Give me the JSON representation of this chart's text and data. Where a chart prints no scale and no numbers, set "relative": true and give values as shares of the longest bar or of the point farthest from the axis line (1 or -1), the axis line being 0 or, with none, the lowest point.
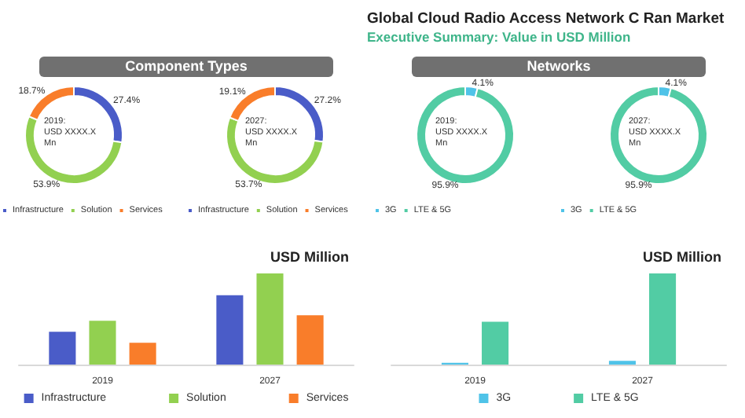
{
  "chart_data": [
    {
      "type": "other",
      "title": "Global Cloud Radio Access Network C Ran Market",
      "subtitle": "Executive Summary: Value in USD Million"
    },
    {
      "type": "donut",
      "title": "Component Types",
      "categories": [
        "Infrastructure",
        "Solution",
        "Services"
      ],
      "values": [
        27.4,
        53.9,
        18.7
      ],
      "value_labels": [
        "27.4%",
        "53.9%",
        "18.7%"
      ],
      "colors": [
        "#4a5cc8",
        "#92d050",
        "#f97d2a"
      ],
      "annotations": [
        "2019:",
        "USD XXXX.X Mn"
      ],
      "legend": "bottom"
    },
    {
      "type": "donut",
      "categories": [
        "Infrastructure",
        "Solution",
        "Services"
      ],
      "values": [
        27.2,
        53.7,
        19.1
      ],
      "value_labels": [
        "27.2%",
        "53.7%",
        "19.1%"
      ],
      "colors": [
        "#4a5cc8",
        "#92d050",
        "#f97d2a"
      ],
      "annotations": [
        "2027:",
        "USD XXXX.X Mn"
      ],
      "legend": "bottom"
    },
    {
      "type": "donut",
      "title": "Networks",
      "categories": [
        "3G",
        "LTE & 5G"
      ],
      "values": [
        4.1,
        95.9
      ],
      "value_labels": [
        "4.1%",
        "95.9%"
      ],
      "colors": [
        "#4fc3e8",
        "#52cca4"
      ],
      "annotations": [
        "2019:",
        "USD XXXX.X Mn"
      ],
      "legend": "bottom"
    },
    {
      "type": "donut",
      "categories": [
        "3G",
        "LTE & 5G"
      ],
      "values": [
        4.1,
        95.9
      ],
      "value_labels": [
        "4.1%",
        "95.9%"
      ],
      "colors": [
        "#4fc3e8",
        "#52cca4"
      ],
      "annotations": [
        "2027:",
        "USD XXXX.X Mn"
      ],
      "legend": "bottom"
    },
    {
      "type": "bar",
      "title": "USD Million",
      "categories": [
        "2019",
        "2027"
      ],
      "relative": true,
      "legend": "bottom",
      "series": [
        {
          "name": "Infrastructure",
          "color": "#4a5cc8",
          "values": [
            0.36,
            0.76
          ]
        },
        {
          "name": "Solution",
          "color": "#92d050",
          "values": [
            0.48,
            1
          ]
        },
        {
          "name": "Services",
          "color": "#f97d2a",
          "values": [
            0.24,
            0.54
          ]
        }
      ]
    },
    {
      "type": "bar",
      "title": "USD Million",
      "categories": [
        "2019",
        "2027"
      ],
      "relative": true,
      "legend": "bottom",
      "series": [
        {
          "name": "3G",
          "color": "#4fc3e8",
          "values": [
            0.02,
            0.04
          ]
        },
        {
          "name": "LTE & 5G",
          "color": "#52cca4",
          "values": [
            0.47,
            1
          ]
        }
      ]
    }
  ]
}
